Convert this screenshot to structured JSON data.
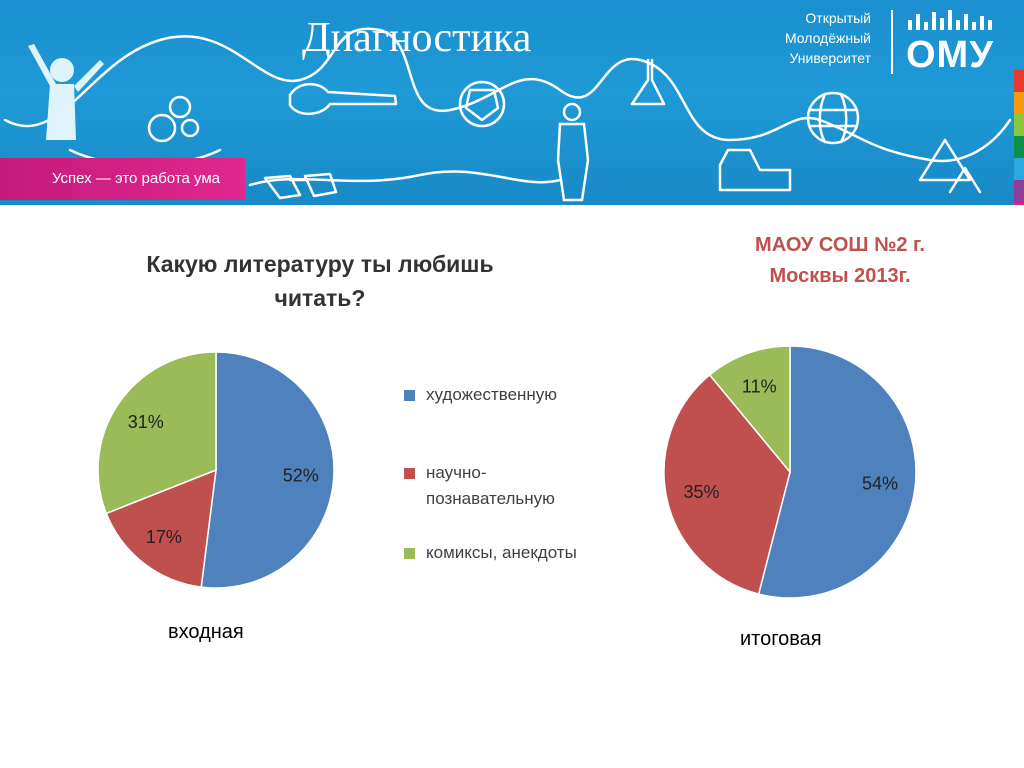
{
  "header": {
    "title": "Диагностика",
    "slogan": "Успех — это работа ума",
    "logo_lines": [
      "Открытый",
      "Молодёжный",
      "Университет"
    ],
    "logo_mark": "ОМУ"
  },
  "school": {
    "line1": "МАОУ  СОШ  №2 г.",
    "line2": "Москвы 2013г."
  },
  "question": {
    "line1": "Какую литературу  ты любишь",
    "line2": "читать?"
  },
  "legend": [
    {
      "label": "художественную",
      "color": "#4f81bd"
    },
    {
      "label": "научно-познавательную",
      "line1": "научно-",
      "line2": "познавательную",
      "color": "#c0504d"
    },
    {
      "label": "комиксы, анекдоты",
      "color": "#9bbb59"
    }
  ],
  "chart_data": [
    {
      "type": "pie",
      "caption": "входная",
      "categories": [
        "художественную",
        "научно-познавательную",
        "комиксы, анекдоты"
      ],
      "values": [
        52,
        17,
        31
      ],
      "labels": [
        "52%",
        "17%",
        "31%"
      ],
      "colors": [
        "#4f81bd",
        "#c0504d",
        "#9bbb59"
      ]
    },
    {
      "type": "pie",
      "caption": "итоговая",
      "categories": [
        "художественную",
        "научно-познавательную",
        "комиксы, анекдоты"
      ],
      "values": [
        54,
        35,
        11
      ],
      "labels": [
        "54%",
        "35%",
        "11%"
      ],
      "colors": [
        "#4f81bd",
        "#c0504d",
        "#9bbb59"
      ]
    }
  ],
  "stripe_colors": [
    "#e63a2e",
    "#f39c12",
    "#8cc63f",
    "#0b8f4a",
    "#2aa8e0",
    "#8e3c97",
    "#d6247a"
  ]
}
